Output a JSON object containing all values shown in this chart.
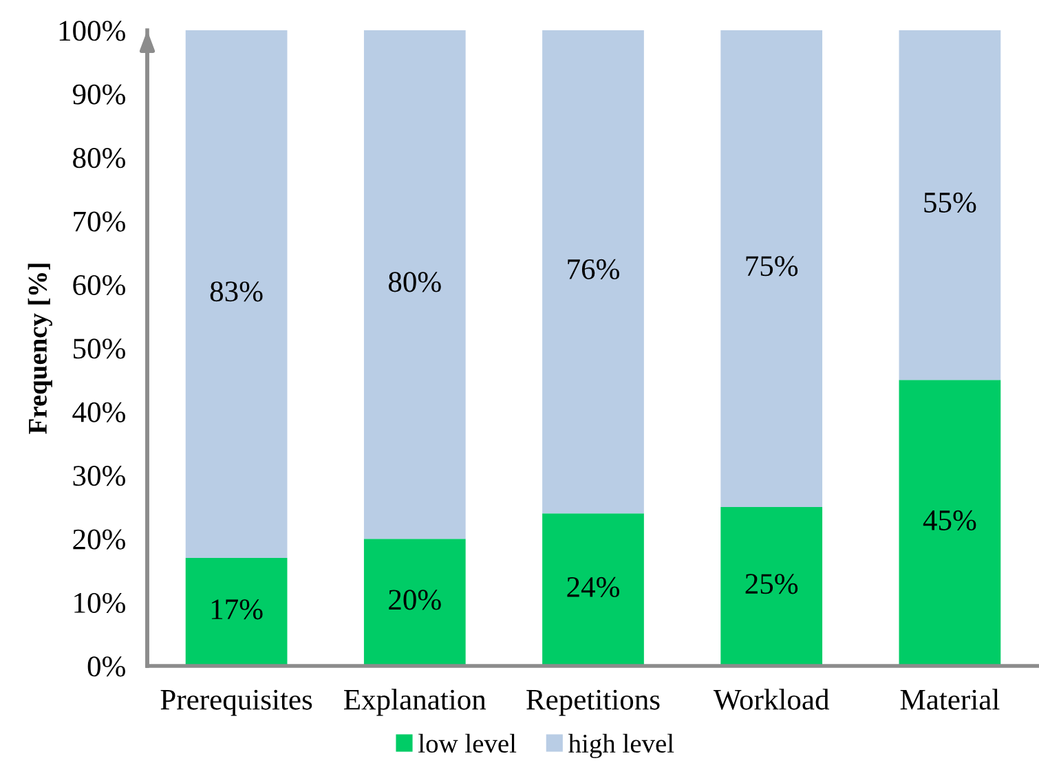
{
  "chart_data": {
    "type": "bar",
    "stacked": true,
    "ylabel": "Frequency [%]",
    "categories": [
      "Prerequisites",
      "Explanation",
      "Repetitions",
      "Workload",
      "Material"
    ],
    "ylim": [
      0,
      100
    ],
    "yticks": [
      {
        "value": 0,
        "label": "0%"
      },
      {
        "value": 10,
        "label": "10%"
      },
      {
        "value": 20,
        "label": "20%"
      },
      {
        "value": 30,
        "label": "30%"
      },
      {
        "value": 40,
        "label": "40%"
      },
      {
        "value": 50,
        "label": "50%"
      },
      {
        "value": 60,
        "label": "60%"
      },
      {
        "value": 70,
        "label": "70%"
      },
      {
        "value": 80,
        "label": "80%"
      },
      {
        "value": 90,
        "label": "90%"
      },
      {
        "value": 100,
        "label": "100%"
      }
    ],
    "series": [
      {
        "name": "low level",
        "color": "#00cc66",
        "values": [
          17,
          20,
          24,
          25,
          45
        ],
        "value_labels": [
          "17%",
          "20%",
          "24%",
          "25%",
          "45%"
        ]
      },
      {
        "name": "high level",
        "color": "#b9cde5",
        "values": [
          83,
          80,
          76,
          75,
          55
        ],
        "value_labels": [
          "83%",
          "80%",
          "76%",
          "75%",
          "55%"
        ]
      }
    ],
    "legend": "bottom"
  }
}
